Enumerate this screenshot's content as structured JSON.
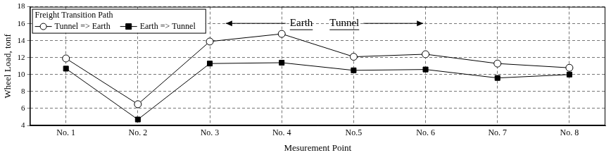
{
  "chart_data": {
    "type": "line",
    "y_label": "Wheel Load, tonf",
    "x_label": "Mesurement Point",
    "legend_title": "Freight Transition Path",
    "legend": "top-left",
    "annotations": [
      "Earth",
      "Tunnel"
    ],
    "categories": [
      "No. 1",
      "No. 2",
      "No. 3",
      "No. 4",
      "No.5",
      "No. 6",
      "No. 7",
      "No. 8"
    ],
    "series": [
      {
        "name": "Tunnel => Earth",
        "color": "#000000",
        "marker": "circle_open",
        "line_style": "solid",
        "values": [
          11.9,
          6.5,
          13.9,
          14.8,
          12.1,
          12.4,
          11.3,
          10.8
        ]
      },
      {
        "name": "Earth => Tunnel",
        "color": "#000000",
        "marker": "square",
        "line_style": "solid",
        "values": [
          10.7,
          4.7,
          11.3,
          11.4,
          10.5,
          10.6,
          9.6,
          10.0
        ]
      }
    ],
    "ylim": [
      4,
      18
    ],
    "yticks": [
      4,
      6,
      8,
      10,
      12,
      14,
      16,
      18
    ],
    "grid": true
  }
}
